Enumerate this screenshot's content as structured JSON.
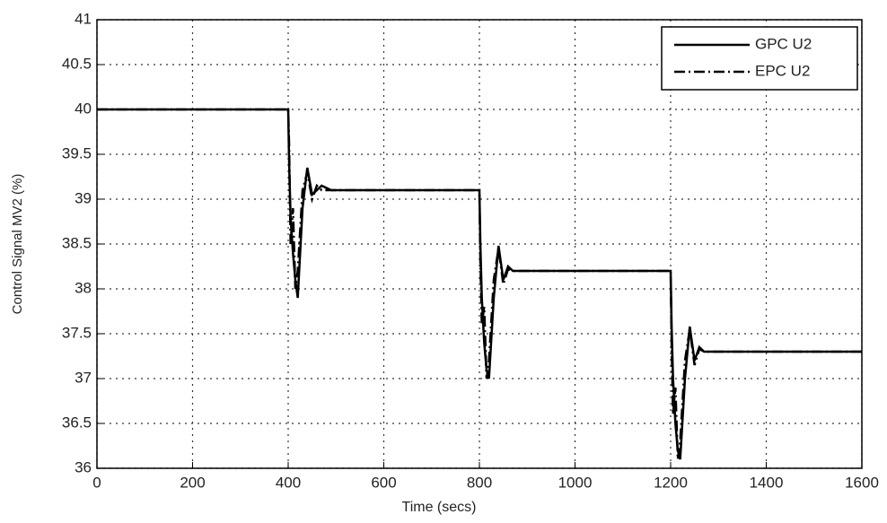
{
  "chart_data": {
    "type": "line",
    "xlabel": "Time (secs)",
    "ylabel": "Control Signal MV2 (%)",
    "x": [
      0,
      400,
      402,
      405,
      410,
      415,
      420,
      430,
      440,
      450,
      460,
      470,
      490,
      800,
      802,
      805,
      810,
      815,
      820,
      830,
      840,
      850,
      860,
      870,
      890,
      1200,
      1202,
      1205,
      1210,
      1215,
      1220,
      1230,
      1240,
      1250,
      1260,
      1270,
      1290,
      1600
    ],
    "series": [
      {
        "name": "GPC U2",
        "color": "#000000",
        "dash": "solid",
        "values": [
          40,
          40,
          39.4,
          38.8,
          38.4,
          38.1,
          37.9,
          38.9,
          39.35,
          39.05,
          39.1,
          39.15,
          39.1,
          39.1,
          38.5,
          37.9,
          37.4,
          37.1,
          37.0,
          37.9,
          38.48,
          38.1,
          38.25,
          38.2,
          38.2,
          38.2,
          37.6,
          37.0,
          36.5,
          36.2,
          36.1,
          37.0,
          37.58,
          37.2,
          37.35,
          37.3,
          37.3,
          37.3
        ]
      },
      {
        "name": "EPC U2",
        "color": "#000000",
        "dash": "dashdot",
        "values": [
          40,
          40,
          39.6,
          38.5,
          38.9,
          38.0,
          38.2,
          39.1,
          39.3,
          39.0,
          39.15,
          39.1,
          39.1,
          39.1,
          38.3,
          37.6,
          37.8,
          37.0,
          37.2,
          38.1,
          38.45,
          38.05,
          38.22,
          38.2,
          38.2,
          38.2,
          37.4,
          36.6,
          36.9,
          36.1,
          36.3,
          37.2,
          37.55,
          37.15,
          37.33,
          37.3,
          37.3,
          37.3
        ]
      }
    ],
    "xlim": [
      0,
      1600
    ],
    "xticks": [
      0,
      200,
      400,
      600,
      800,
      1000,
      1200,
      1400,
      1600
    ],
    "ylim": [
      36,
      41
    ],
    "yticks": [
      36,
      36.5,
      37,
      37.5,
      38,
      38.5,
      39,
      39.5,
      40,
      40.5,
      41
    ],
    "grid": true,
    "legend": "upper-right"
  }
}
